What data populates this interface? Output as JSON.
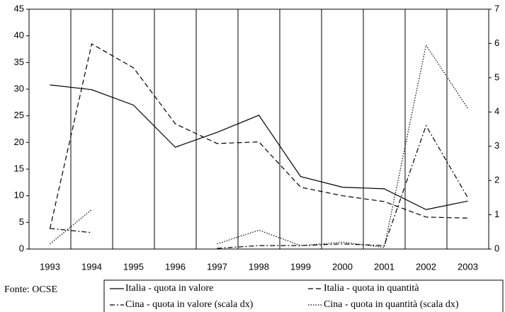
{
  "chart_data": {
    "type": "line",
    "categories": [
      "1993",
      "1994",
      "1995",
      "1996",
      "1997",
      "1998",
      "1999",
      "2000",
      "2001",
      "2002",
      "2003"
    ],
    "series": [
      {
        "name": "Italia - quota in valore",
        "color": "#000000",
        "dash": "",
        "values": [
          30.8,
          29.9,
          27,
          19.1,
          21.9,
          25.1,
          13.6,
          11.6,
          11.3,
          7.4,
          9
        ]
      },
      {
        "name": "Italia - quota in quantità",
        "color": "#000000",
        "dash": "7 4",
        "values": [
          3.8,
          38.5,
          34,
          23.5,
          19.8,
          20.1,
          11.6,
          10,
          8.9,
          6,
          5.8
        ]
      },
      {
        "name": "Cina - quota in valore (scala dx)",
        "color": "#000000",
        "dash": "7 3 2 3",
        "axis": "y2",
        "values": [
          0.6,
          0.48,
          null,
          null,
          0.02,
          0.1,
          0.1,
          0.15,
          0.1,
          3.6,
          1.5
        ]
      },
      {
        "name": "Cina - quota in quantità (scala dx)",
        "color": "#000000",
        "dash": "1.5 2",
        "axis": "y2",
        "values": [
          0.15,
          1.15,
          null,
          null,
          0.15,
          0.55,
          0.1,
          0.2,
          0.05,
          5.95,
          4.1
        ]
      }
    ],
    "ylim": [
      0,
      45
    ],
    "yticks": [
      0,
      5,
      10,
      15,
      20,
      25,
      30,
      35,
      40,
      45
    ],
    "y2lim": [
      0,
      7
    ],
    "y2ticks": [
      0,
      1,
      2,
      3,
      4,
      5,
      6,
      7
    ],
    "grid": "x",
    "source": "Fonte: OCSE"
  }
}
